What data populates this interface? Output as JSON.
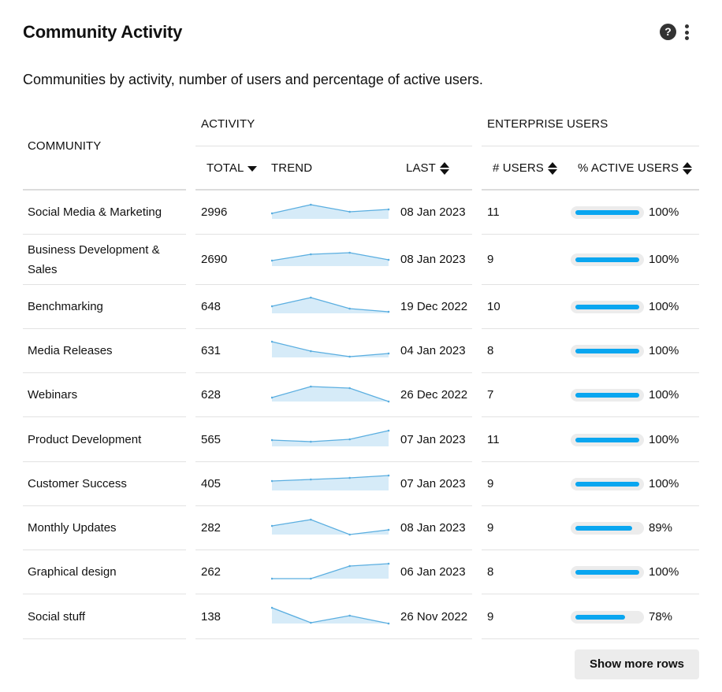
{
  "header": {
    "title": "Community Activity",
    "help_icon": "help-icon",
    "help_glyph": "?",
    "more_icon": "more-vertical-icon",
    "subtitle": "Communities by activity, number of users and percentage of active users."
  },
  "table": {
    "group_headers": {
      "community": "COMMUNITY",
      "activity": "ACTIVITY",
      "enterprise_users": "ENTERPRISE USERS"
    },
    "column_headers": {
      "total": "TOTAL",
      "trend": "TREND",
      "last": "LAST",
      "users": "# USERS",
      "active_users": "% ACTIVE USERS"
    },
    "sort": {
      "total": "descending",
      "last": "sortable",
      "users": "sortable",
      "active_users": "sortable"
    },
    "rows": [
      {
        "community": "Social Media & Marketing",
        "total": "2996",
        "trend": [
          0.35,
          0.9,
          0.45,
          0.6
        ],
        "last": "08 Jan 2023",
        "users": "11",
        "active_pct": 100,
        "active_label": "100%"
      },
      {
        "community": "Business Development & Sales",
        "total": "2690",
        "trend": [
          0.35,
          0.75,
          0.85,
          0.4
        ],
        "last": "08 Jan 2023",
        "users": "9",
        "active_pct": 100,
        "active_label": "100%"
      },
      {
        "community": "Benchmarking",
        "total": "648",
        "trend": [
          0.45,
          1.0,
          0.3,
          0.1
        ],
        "last": "19 Dec 2022",
        "users": "10",
        "active_pct": 100,
        "active_label": "100%"
      },
      {
        "community": "Media Releases",
        "total": "631",
        "trend": [
          1.0,
          0.4,
          0.05,
          0.25
        ],
        "last": "04 Jan 2023",
        "users": "8",
        "active_pct": 100,
        "active_label": "100%"
      },
      {
        "community": "Webinars",
        "total": "628",
        "trend": [
          0.25,
          0.95,
          0.85,
          0.0
        ],
        "last": "26 Dec 2022",
        "users": "7",
        "active_pct": 100,
        "active_label": "100%"
      },
      {
        "community": "Product Development",
        "total": "565",
        "trend": [
          0.4,
          0.3,
          0.45,
          1.0
        ],
        "last": "07 Jan 2023",
        "users": "11",
        "active_pct": 100,
        "active_label": "100%"
      },
      {
        "community": "Customer Success",
        "total": "405",
        "trend": [
          0.6,
          0.7,
          0.8,
          0.95
        ],
        "last": "07 Jan 2023",
        "users": "9",
        "active_pct": 100,
        "active_label": "100%"
      },
      {
        "community": "Monthly Updates",
        "total": "282",
        "trend": [
          0.55,
          0.95,
          0.0,
          0.3
        ],
        "last": "08 Jan 2023",
        "users": "9",
        "active_pct": 89,
        "active_label": "89%"
      },
      {
        "community": "Graphical design",
        "total": "262",
        "trend": [
          0.0,
          0.0,
          0.8,
          0.95
        ],
        "last": "06 Jan 2023",
        "users": "8",
        "active_pct": 100,
        "active_label": "100%"
      },
      {
        "community": "Social stuff",
        "total": "138",
        "trend": [
          1.0,
          0.05,
          0.5,
          0.0
        ],
        "last": "26 Nov 2022",
        "users": "9",
        "active_pct": 78,
        "active_label": "78%"
      }
    ]
  },
  "footer": {
    "show_more_label": "Show more rows"
  },
  "colors": {
    "accent": "#0aa6f0",
    "spark_line": "#5aaee0",
    "spark_fill": "#d6ebf8",
    "track": "#ececec"
  }
}
